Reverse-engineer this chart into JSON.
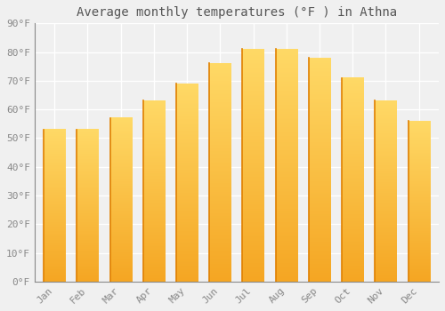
{
  "title": "Average monthly temperatures (°F ) in Athna",
  "months": [
    "Jan",
    "Feb",
    "Mar",
    "Apr",
    "May",
    "Jun",
    "Jul",
    "Aug",
    "Sep",
    "Oct",
    "Nov",
    "Dec"
  ],
  "values": [
    53,
    53,
    57,
    63,
    69,
    76,
    81,
    81,
    78,
    71,
    63,
    56
  ],
  "bar_color_bottom": "#F5A623",
  "bar_color_top": "#FFD966",
  "bar_edge_left": "#E08000",
  "ylim": [
    0,
    90
  ],
  "yticks": [
    0,
    10,
    20,
    30,
    40,
    50,
    60,
    70,
    80,
    90
  ],
  "ytick_labels": [
    "0°F",
    "10°F",
    "20°F",
    "30°F",
    "40°F",
    "50°F",
    "60°F",
    "70°F",
    "80°F",
    "90°F"
  ],
  "background_color": "#f0f0f0",
  "grid_color": "#ffffff",
  "title_fontsize": 10,
  "tick_fontsize": 8,
  "figsize": [
    5.0,
    3.5
  ],
  "dpi": 100
}
